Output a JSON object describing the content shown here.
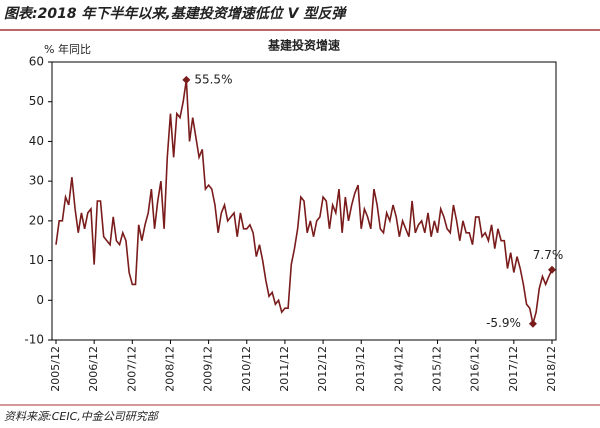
{
  "header": "图表:2018 年下半年以来,基建投资增速低位 V 型反弹",
  "source": "资料来源:CEIC,中金公司研究部",
  "chart_data": {
    "type": "line",
    "title": "基建投资增速",
    "y_label": "% 年同比",
    "categories": [
      "2005/12",
      null,
      null,
      null,
      null,
      null,
      null,
      null,
      null,
      null,
      null,
      null,
      "2006/12",
      null,
      null,
      null,
      null,
      null,
      null,
      null,
      null,
      null,
      null,
      null,
      "2007/12",
      null,
      null,
      null,
      null,
      null,
      null,
      null,
      null,
      null,
      null,
      null,
      "2008/12",
      null,
      null,
      null,
      null,
      null,
      null,
      null,
      null,
      null,
      null,
      null,
      "2009/12",
      null,
      null,
      null,
      null,
      null,
      null,
      null,
      null,
      null,
      null,
      null,
      "2010/12",
      null,
      null,
      null,
      null,
      null,
      null,
      null,
      null,
      null,
      null,
      null,
      "2011/12",
      null,
      null,
      null,
      null,
      null,
      null,
      null,
      null,
      null,
      null,
      null,
      "2012/12",
      null,
      null,
      null,
      null,
      null,
      null,
      null,
      null,
      null,
      null,
      null,
      "2013/12",
      null,
      null,
      null,
      null,
      null,
      null,
      null,
      null,
      null,
      null,
      null,
      "2014/12",
      null,
      null,
      null,
      null,
      null,
      null,
      null,
      null,
      null,
      null,
      null,
      "2015/12",
      null,
      null,
      null,
      null,
      null,
      null,
      null,
      null,
      null,
      null,
      null,
      "2016/12",
      null,
      null,
      null,
      null,
      null,
      null,
      null,
      null,
      null,
      null,
      null,
      "2017/12",
      null,
      null,
      null,
      null,
      null,
      null,
      null,
      null,
      null,
      null,
      null,
      "2018/12"
    ],
    "series": [
      {
        "name": "基建投资增速",
        "color": "#7a1c1c",
        "values": [
          14,
          20,
          20,
          26,
          24,
          31,
          23,
          17,
          22,
          18,
          22,
          23,
          9,
          25,
          25,
          16,
          15,
          14,
          21,
          15,
          14,
          17,
          15,
          7,
          4,
          4,
          19,
          15,
          19,
          22,
          28,
          18,
          25,
          30,
          18,
          36,
          47,
          36,
          47,
          46,
          50,
          55.5,
          40,
          46,
          41,
          36,
          38,
          28,
          29,
          28,
          24,
          17,
          22,
          24,
          20,
          21,
          22,
          16,
          22,
          18,
          18,
          19,
          17,
          11,
          14,
          10,
          5,
          1,
          2,
          -1,
          0,
          -3,
          -2,
          -2,
          9,
          13,
          18,
          26,
          25,
          17,
          20,
          16,
          20,
          21,
          26,
          25,
          18,
          24,
          22,
          28,
          17,
          26,
          20,
          24,
          27,
          29,
          18,
          23,
          21,
          18,
          28,
          24,
          18,
          17,
          22,
          20,
          24,
          21,
          16,
          20,
          18,
          16,
          25,
          17,
          19,
          20,
          17,
          22,
          16,
          20,
          17,
          23,
          21,
          18,
          17,
          24,
          20,
          15,
          20,
          17,
          17,
          14,
          21,
          21,
          16,
          17,
          15,
          19,
          13,
          18,
          15,
          15,
          8,
          12,
          7,
          11,
          8,
          4,
          -1,
          -2,
          -5.9,
          -3,
          3,
          6,
          4,
          6,
          7.7
        ],
        "value_labels": [
          null,
          null,
          null,
          null,
          null,
          null,
          null,
          null,
          null,
          null,
          null,
          null,
          null,
          null,
          null,
          null,
          null,
          null,
          null,
          null,
          null,
          null,
          null,
          null,
          null,
          null,
          null,
          null,
          null,
          null,
          null,
          null,
          null,
          null,
          null,
          null,
          null,
          null,
          null,
          null,
          null,
          "55.5%",
          null,
          null,
          null,
          null,
          null,
          null,
          null,
          null,
          null,
          null,
          null,
          null,
          null,
          null,
          null,
          null,
          null,
          null,
          null,
          null,
          null,
          null,
          null,
          null,
          null,
          null,
          null,
          null,
          null,
          null,
          null,
          null,
          null,
          null,
          null,
          null,
          null,
          null,
          null,
          null,
          null,
          null,
          null,
          null,
          null,
          null,
          null,
          null,
          null,
          null,
          null,
          null,
          null,
          null,
          null,
          null,
          null,
          null,
          null,
          null,
          null,
          null,
          null,
          null,
          null,
          null,
          null,
          null,
          null,
          null,
          null,
          null,
          null,
          null,
          null,
          null,
          null,
          null,
          null,
          null,
          null,
          null,
          null,
          null,
          null,
          null,
          null,
          null,
          null,
          null,
          null,
          null,
          null,
          null,
          null,
          null,
          null,
          null,
          null,
          null,
          null,
          null,
          null,
          null,
          null,
          null,
          null,
          null,
          "-5.9%",
          null,
          null,
          null,
          null,
          null,
          "7.7%"
        ]
      }
    ],
    "ylim": [
      -10,
      60
    ],
    "yticks": [
      -10,
      0,
      10,
      20,
      30,
      40,
      50,
      60
    ]
  }
}
